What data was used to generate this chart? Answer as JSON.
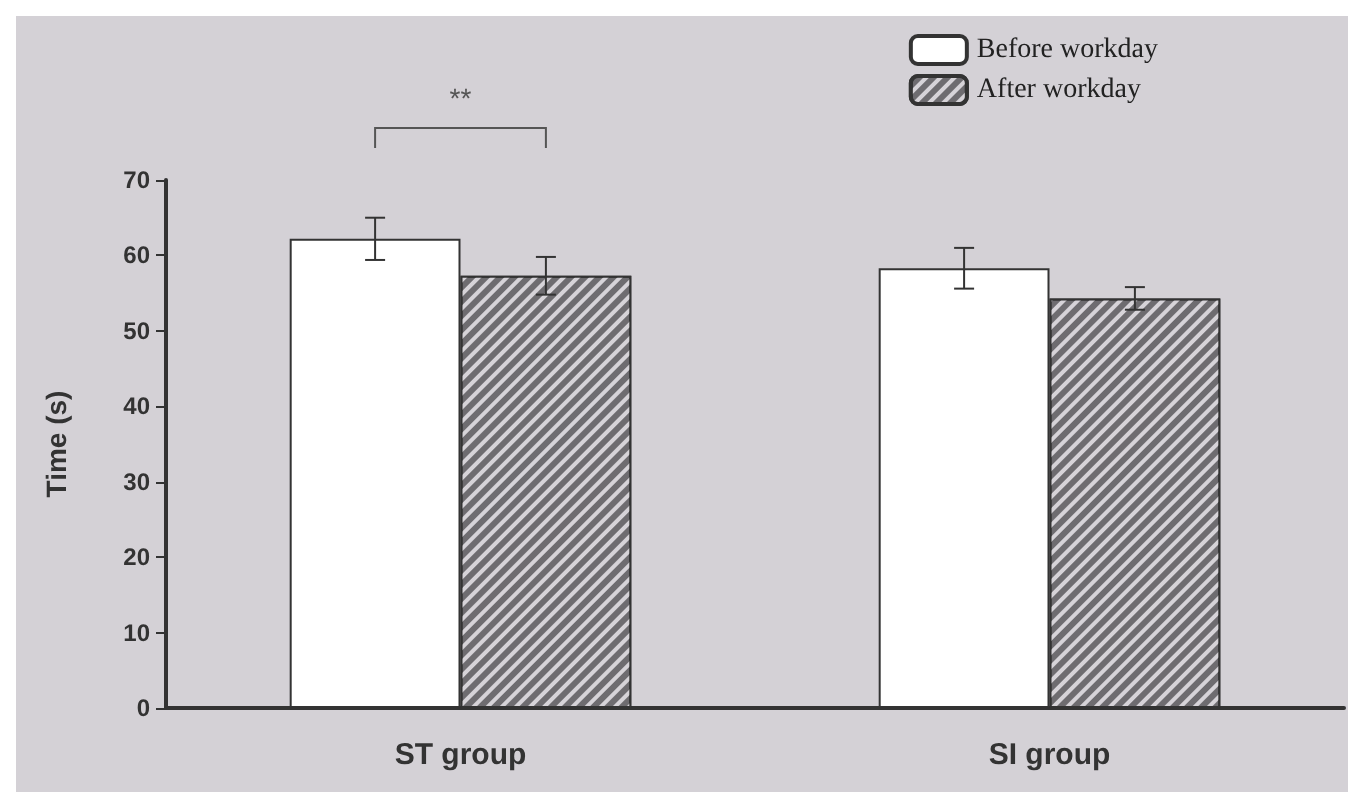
{
  "chart_data": {
    "type": "bar",
    "ylabel": "Time (s)",
    "categories": [
      "ST group",
      "SI group"
    ],
    "series": [
      {
        "name": "Before workday",
        "color": "#ffffff",
        "values": [
          62.2,
          58.3
        ],
        "errors": [
          2.8,
          2.7
        ]
      },
      {
        "name": "After workday",
        "color": "#6e6c70",
        "values": [
          57.3,
          54.3
        ],
        "errors": [
          2.5,
          1.5
        ]
      }
    ],
    "ylim": [
      0,
      70
    ],
    "yticks": [
      0,
      10,
      20,
      30,
      40,
      50,
      60,
      70
    ],
    "grid": false,
    "legend": "top right",
    "annotations": [
      "**"
    ]
  }
}
